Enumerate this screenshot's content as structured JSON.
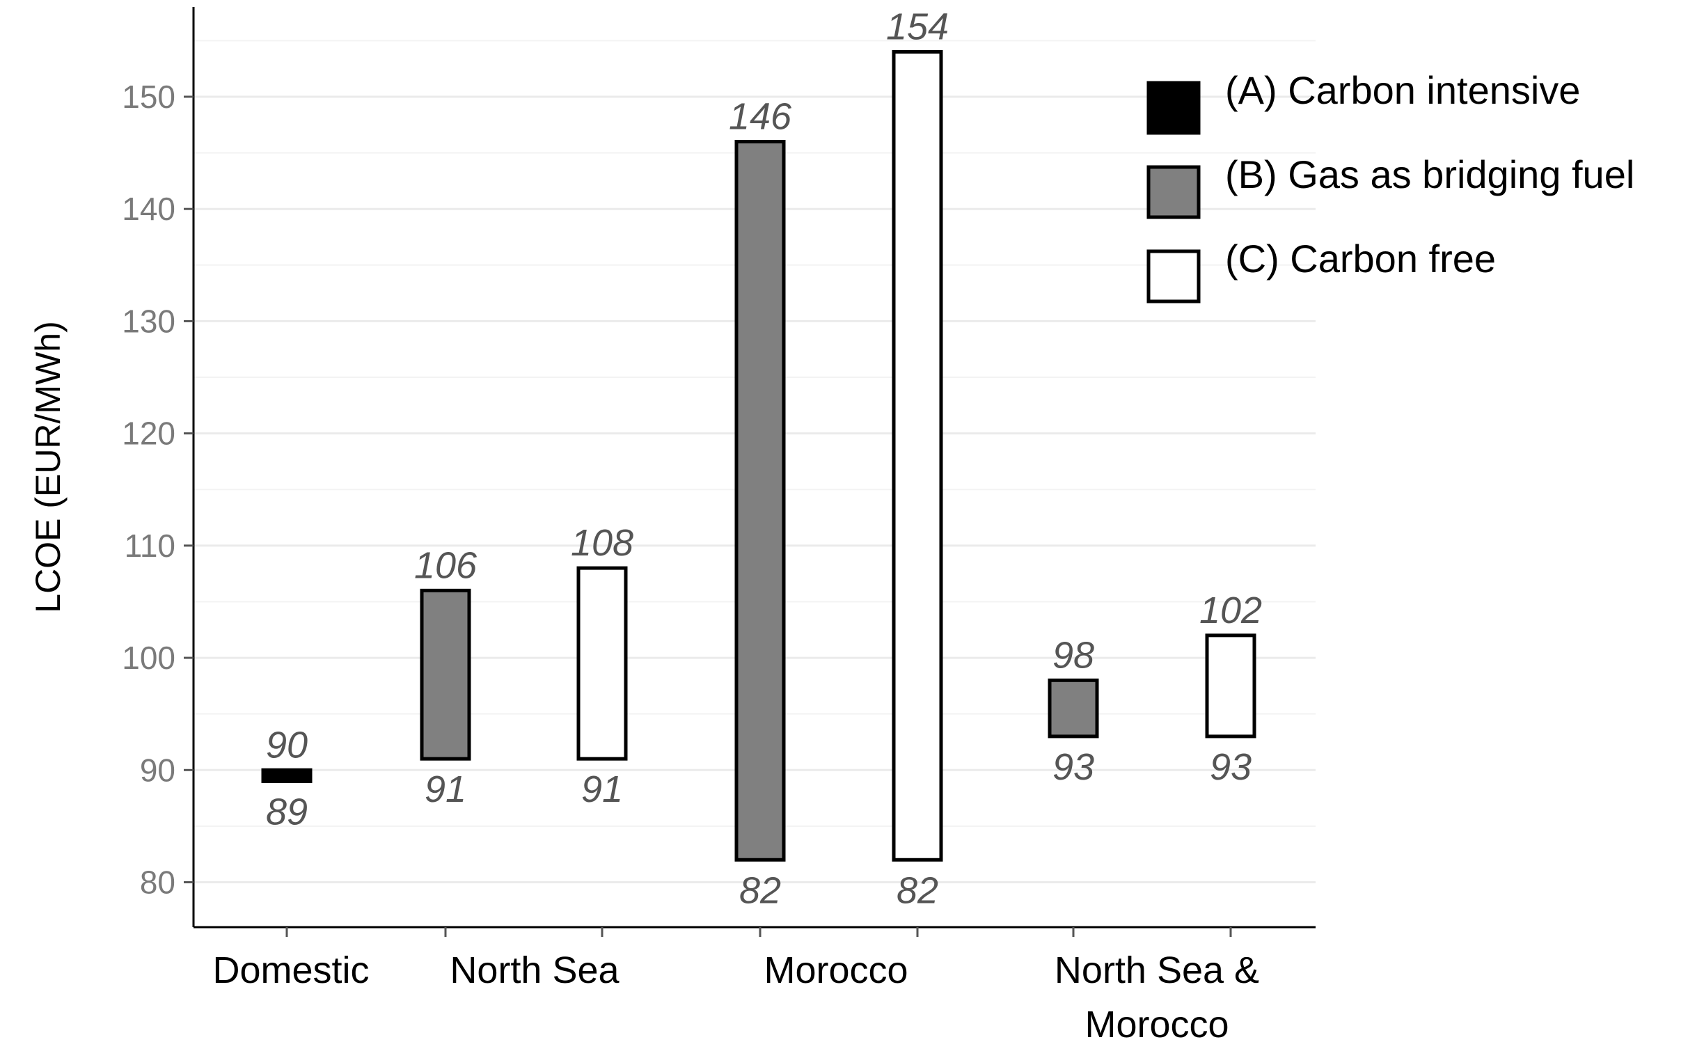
{
  "chart_data": {
    "type": "floating-bar",
    "title": "",
    "xlabel": "",
    "ylabel": "LCOE (EUR/MWh)",
    "ylim": [
      76,
      158
    ],
    "yticks": [
      80,
      90,
      100,
      110,
      120,
      130,
      140,
      150
    ],
    "grid": true,
    "legend_position": "top-right",
    "categories": [
      {
        "label_lines": [
          "Domestic"
        ]
      },
      {
        "label_lines": [
          "North Sea"
        ]
      },
      {
        "label_lines": [
          "Morocco"
        ]
      },
      {
        "label_lines": [
          "North Sea &",
          "Morocco"
        ]
      }
    ],
    "series": [
      {
        "name": "(A) Carbon intensive",
        "color": "#000000"
      },
      {
        "name": "(B) Gas as bridging fuel",
        "color": "#808080"
      },
      {
        "name": "(C) Carbon free",
        "color": "#ffffff"
      }
    ],
    "bars": [
      {
        "category": 0,
        "series": 0,
        "low": 89,
        "high": 90,
        "low_label": "89",
        "high_label": "90"
      },
      {
        "category": 1,
        "series": 1,
        "low": 91,
        "high": 106,
        "low_label": "91",
        "high_label": "106"
      },
      {
        "category": 1,
        "series": 2,
        "low": 91,
        "high": 108,
        "low_label": "91",
        "high_label": "108"
      },
      {
        "category": 2,
        "series": 1,
        "low": 82,
        "high": 146,
        "low_label": "82",
        "high_label": "146"
      },
      {
        "category": 2,
        "series": 2,
        "low": 82,
        "high": 154,
        "low_label": "82",
        "high_label": "154"
      },
      {
        "category": 3,
        "series": 1,
        "low": 93,
        "high": 98,
        "low_label": "93",
        "high_label": "98"
      },
      {
        "category": 3,
        "series": 2,
        "low": 93,
        "high": 102,
        "low_label": "93",
        "high_label": "102"
      }
    ]
  }
}
